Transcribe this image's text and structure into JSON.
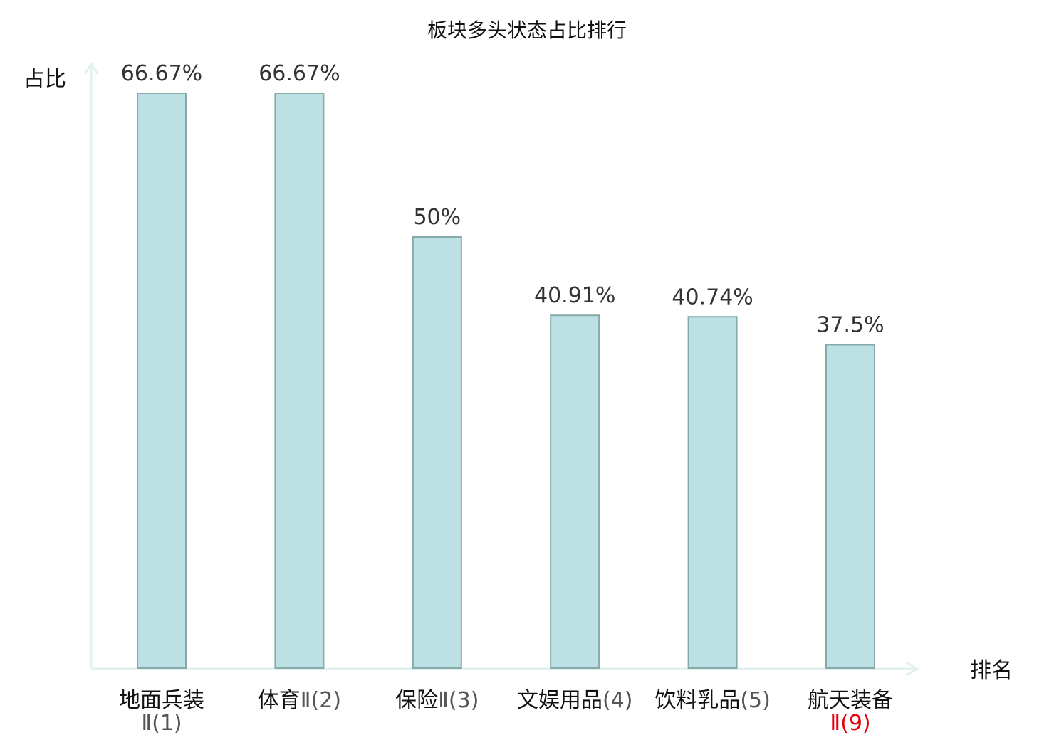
{
  "chart_data": {
    "type": "bar",
    "title": "板块多头状态占比排行",
    "ylabel": "占比",
    "xlabel": "排名",
    "ylim": [
      0,
      66.67
    ],
    "grid": false,
    "bar_color": "#bce0e3",
    "bar_stroke": "#86a9aa",
    "axis_color": "#dff2ef",
    "highlight_color": "#e8000b",
    "categories": [
      {
        "name": "地面兵装",
        "sub": "Ⅱ(1)",
        "highlight": false
      },
      {
        "name": "体育",
        "sub": "Ⅱ(2)",
        "highlight": false
      },
      {
        "name": "保险",
        "sub": "Ⅱ(3)",
        "highlight": false
      },
      {
        "name": "文娱用品",
        "sub": "(4)",
        "highlight": false
      },
      {
        "name": "饮料乳品",
        "sub": "(5)",
        "highlight": false
      },
      {
        "name": "航天装备",
        "sub": "Ⅱ(9)",
        "highlight": true
      }
    ],
    "values": [
      66.67,
      66.67,
      50,
      40.91,
      40.74,
      37.5
    ],
    "value_labels": [
      "66.67%",
      "66.67%",
      "50%",
      "40.91%",
      "40.74%",
      "37.5%"
    ]
  }
}
